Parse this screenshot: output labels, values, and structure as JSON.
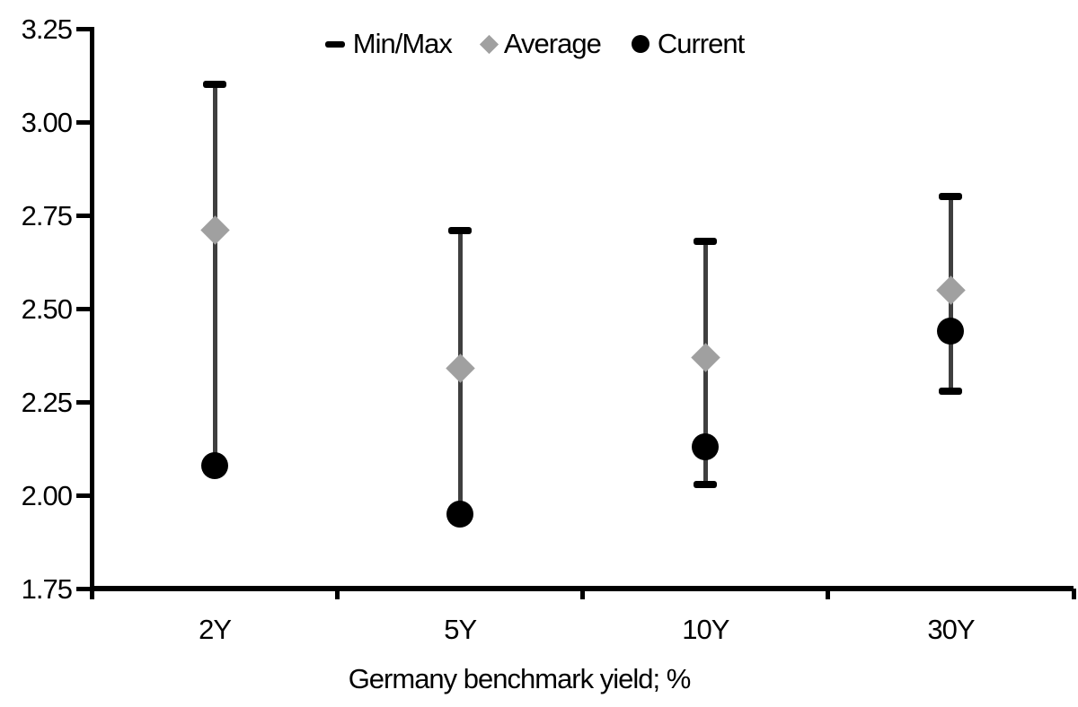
{
  "chart_data": {
    "type": "scatter",
    "subtype": "min-max-range-with-markers",
    "categories": [
      "2Y",
      "5Y",
      "10Y",
      "30Y"
    ],
    "series": [
      {
        "name": "Min/Max",
        "role": "range",
        "marker": "dash",
        "min": [
          2.08,
          1.95,
          2.03,
          2.28
        ],
        "max": [
          3.1,
          2.71,
          2.68,
          2.8
        ]
      },
      {
        "name": "Average",
        "role": "point",
        "marker": "diamond",
        "values": [
          2.71,
          2.34,
          2.37,
          2.55
        ]
      },
      {
        "name": "Current",
        "role": "point",
        "marker": "circle",
        "values": [
          2.08,
          1.95,
          2.13,
          2.44
        ]
      }
    ],
    "title": "",
    "xlabel": "Germany benchmark yield; %",
    "ylabel": "",
    "ylim": [
      1.75,
      3.25
    ],
    "ytick_labels": [
      "3.25",
      "3.00",
      "2.75",
      "2.50",
      "2.25",
      "2.00",
      "1.75"
    ],
    "ytick_values": [
      3.25,
      3.0,
      2.75,
      2.5,
      2.25,
      2.0,
      1.75
    ],
    "grid": false,
    "legend_position": "top"
  },
  "legend": {
    "items": [
      {
        "label": "Min/Max",
        "marker": "dash"
      },
      {
        "label": "Average",
        "marker": "diamond"
      },
      {
        "label": "Current",
        "marker": "circle"
      }
    ]
  },
  "colors": {
    "background": "#ffffff",
    "text": "#000000",
    "axis": "#000000",
    "min_max": "#000000",
    "average": "#a0a0a0",
    "current": "#000000",
    "range_line": "#3f3f3f"
  }
}
